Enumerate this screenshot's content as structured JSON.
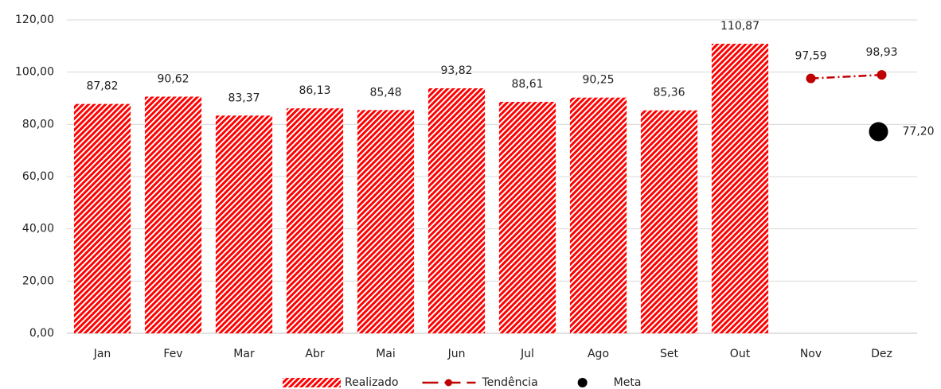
{
  "chart_data": {
    "type": "bar",
    "categories": [
      "Jan",
      "Fev",
      "Mar",
      "Abr",
      "Mai",
      "Jun",
      "Jul",
      "Ago",
      "Set",
      "Out",
      "Nov",
      "Dez"
    ],
    "series": [
      {
        "name": "Realizado",
        "type": "bar",
        "color": "#ff0000",
        "values": [
          87.82,
          90.62,
          83.37,
          86.13,
          85.48,
          93.82,
          88.61,
          90.25,
          85.36,
          110.87,
          null,
          null
        ],
        "value_labels": [
          "87,82",
          "90,62",
          "83,37",
          "86,13",
          "85,48",
          "93,82",
          "88,61",
          "90,25",
          "85,36",
          "110,87",
          null,
          null
        ]
      },
      {
        "name": "Tendência",
        "type": "line",
        "color": "#c00000",
        "values": [
          null,
          null,
          null,
          null,
          null,
          null,
          null,
          null,
          null,
          null,
          97.59,
          98.93
        ],
        "value_labels": [
          null,
          null,
          null,
          null,
          null,
          null,
          null,
          null,
          null,
          null,
          "97,59",
          "98,93"
        ]
      },
      {
        "name": "Meta",
        "type": "scatter",
        "color": "#000000",
        "values": [
          null,
          null,
          null,
          null,
          null,
          null,
          null,
          null,
          null,
          null,
          null,
          77.2
        ],
        "value_labels": [
          null,
          null,
          null,
          null,
          null,
          null,
          null,
          null,
          null,
          null,
          null,
          "77,20"
        ]
      }
    ],
    "ylim": [
      0,
      120
    ],
    "yticks": [
      {
        "value": 0,
        "label": "0,00"
      },
      {
        "value": 20,
        "label": "20,00"
      },
      {
        "value": 40,
        "label": "40,00"
      },
      {
        "value": 60,
        "label": "60,00"
      },
      {
        "value": 80,
        "label": "80,00"
      },
      {
        "value": 100,
        "label": "100,00"
      },
      {
        "value": 120,
        "label": "120,00"
      }
    ],
    "grid": true,
    "legend": "bottom"
  }
}
